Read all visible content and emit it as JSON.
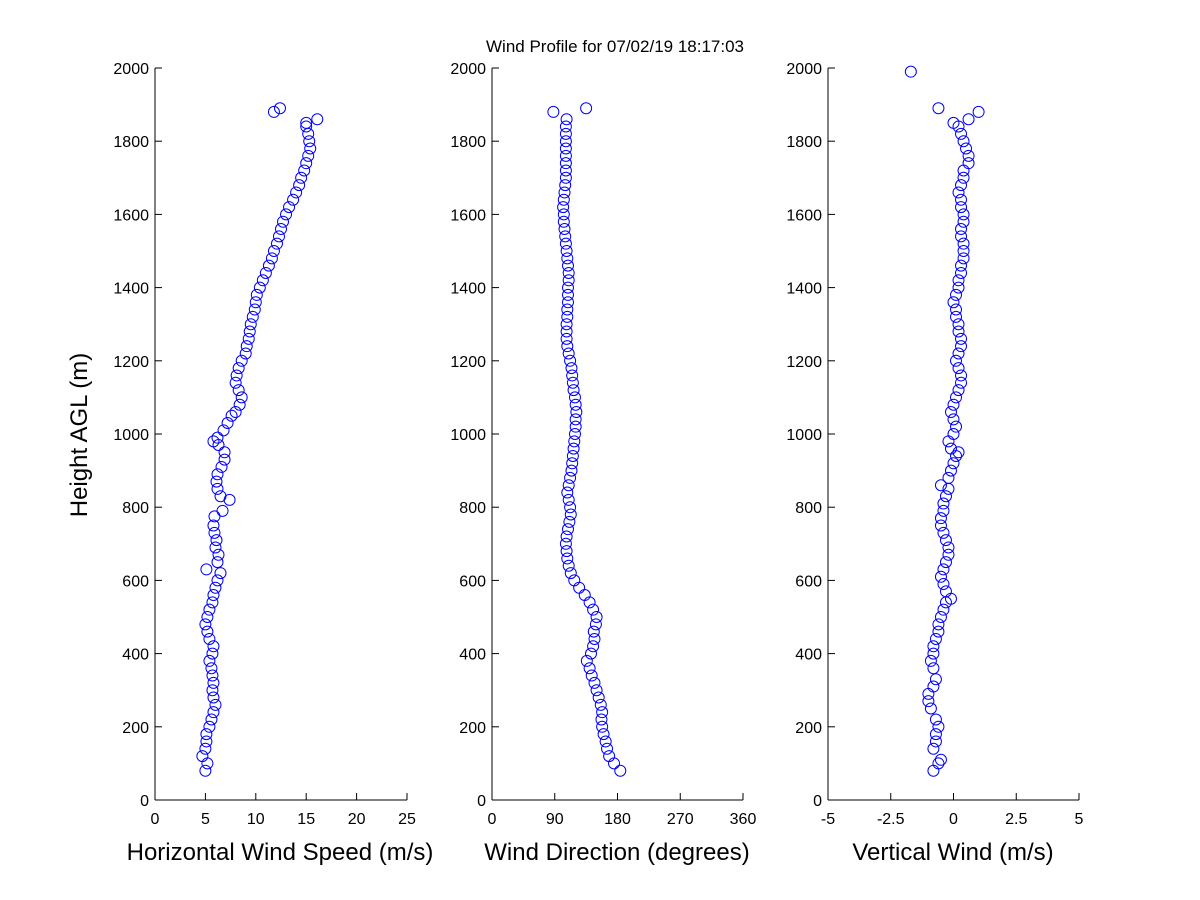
{
  "title": "Wind Profile for  07/02/19 18:17:03",
  "ylabel": "Height AGL (m)",
  "colors": {
    "marker": "#0000ff",
    "axis": "#000000",
    "background": "#ffffff"
  },
  "chart_data": [
    {
      "type": "scatter",
      "xlabel": "Horizontal Wind Speed (m/s)",
      "ylabel": "Height AGL (m)",
      "xlim": [
        0,
        25
      ],
      "ylim": [
        0,
        2000
      ],
      "xticks": [
        0,
        5,
        10,
        15,
        20,
        25
      ],
      "yticks": [
        0,
        200,
        400,
        600,
        800,
        1000,
        1200,
        1400,
        1600,
        1800,
        2000
      ],
      "xtick_labels": [
        "0",
        "5",
        "10",
        "15",
        "20",
        "25"
      ],
      "ytick_labels": [
        "0",
        "200",
        "400",
        "600",
        "800",
        "1000",
        "1200",
        "1400",
        "1600",
        "1800",
        "2000"
      ],
      "grid": false,
      "marker": "open-circle",
      "points": [
        [
          5.0,
          80
        ],
        [
          5.2,
          100
        ],
        [
          4.7,
          120
        ],
        [
          5.0,
          140
        ],
        [
          5.1,
          160
        ],
        [
          5.1,
          180
        ],
        [
          5.4,
          200
        ],
        [
          5.6,
          220
        ],
        [
          5.8,
          240
        ],
        [
          6.0,
          260
        ],
        [
          5.8,
          280
        ],
        [
          5.7,
          300
        ],
        [
          5.8,
          320
        ],
        [
          5.7,
          340
        ],
        [
          5.6,
          360
        ],
        [
          5.4,
          380
        ],
        [
          5.7,
          400
        ],
        [
          5.8,
          420
        ],
        [
          5.4,
          440
        ],
        [
          5.2,
          460
        ],
        [
          5.0,
          480
        ],
        [
          5.2,
          500
        ],
        [
          5.4,
          520
        ],
        [
          5.7,
          540
        ],
        [
          5.8,
          560
        ],
        [
          6.0,
          580
        ],
        [
          6.2,
          600
        ],
        [
          5.1,
          630
        ],
        [
          6.5,
          620
        ],
        [
          6.2,
          650
        ],
        [
          6.3,
          670
        ],
        [
          6.0,
          690
        ],
        [
          6.1,
          710
        ],
        [
          5.9,
          730
        ],
        [
          5.8,
          750
        ],
        [
          5.9,
          775
        ],
        [
          6.7,
          790
        ],
        [
          7.4,
          820
        ],
        [
          6.5,
          830
        ],
        [
          6.2,
          850
        ],
        [
          6.1,
          870
        ],
        [
          6.2,
          890
        ],
        [
          6.6,
          910
        ],
        [
          6.9,
          930
        ],
        [
          6.9,
          950
        ],
        [
          6.3,
          970
        ],
        [
          5.8,
          980
        ],
        [
          6.2,
          990
        ],
        [
          6.8,
          1010
        ],
        [
          7.2,
          1030
        ],
        [
          7.6,
          1050
        ],
        [
          8.0,
          1060
        ],
        [
          8.4,
          1080
        ],
        [
          8.6,
          1100
        ],
        [
          8.3,
          1120
        ],
        [
          8.0,
          1140
        ],
        [
          8.1,
          1160
        ],
        [
          8.3,
          1180
        ],
        [
          8.6,
          1200
        ],
        [
          9.0,
          1220
        ],
        [
          9.1,
          1240
        ],
        [
          9.3,
          1260
        ],
        [
          9.4,
          1280
        ],
        [
          9.5,
          1300
        ],
        [
          9.7,
          1320
        ],
        [
          9.9,
          1340
        ],
        [
          10.0,
          1360
        ],
        [
          10.1,
          1380
        ],
        [
          10.4,
          1400
        ],
        [
          10.7,
          1420
        ],
        [
          11.0,
          1440
        ],
        [
          11.3,
          1460
        ],
        [
          11.6,
          1480
        ],
        [
          11.8,
          1500
        ],
        [
          12.1,
          1520
        ],
        [
          12.3,
          1540
        ],
        [
          12.5,
          1560
        ],
        [
          12.7,
          1580
        ],
        [
          13.0,
          1600
        ],
        [
          13.3,
          1620
        ],
        [
          13.7,
          1640
        ],
        [
          14.0,
          1660
        ],
        [
          14.3,
          1680
        ],
        [
          14.5,
          1700
        ],
        [
          14.8,
          1720
        ],
        [
          15.0,
          1740
        ],
        [
          15.2,
          1760
        ],
        [
          15.4,
          1780
        ],
        [
          15.3,
          1800
        ],
        [
          15.2,
          1820
        ],
        [
          15.0,
          1840
        ],
        [
          15.0,
          1850
        ],
        [
          16.1,
          1860
        ],
        [
          11.8,
          1880
        ],
        [
          12.4,
          1890
        ]
      ]
    },
    {
      "type": "scatter",
      "xlabel": "Wind Direction (degrees)",
      "ylabel": "",
      "xlim": [
        0,
        360
      ],
      "ylim": [
        0,
        2000
      ],
      "xticks": [
        0,
        90,
        180,
        270,
        360
      ],
      "yticks": [
        0,
        200,
        400,
        600,
        800,
        1000,
        1200,
        1400,
        1600,
        1800,
        2000
      ],
      "xtick_labels": [
        "0",
        "90",
        "180",
        "270",
        "360"
      ],
      "ytick_labels": [
        "0",
        "200",
        "400",
        "600",
        "800",
        "1000",
        "1200",
        "1400",
        "1600",
        "1800",
        "2000"
      ],
      "grid": false,
      "marker": "open-circle",
      "points": [
        [
          184,
          80
        ],
        [
          175,
          100
        ],
        [
          168,
          120
        ],
        [
          165,
          140
        ],
        [
          163,
          160
        ],
        [
          160,
          180
        ],
        [
          158,
          200
        ],
        [
          157,
          220
        ],
        [
          158,
          240
        ],
        [
          156,
          260
        ],
        [
          153,
          280
        ],
        [
          150,
          300
        ],
        [
          147,
          320
        ],
        [
          143,
          340
        ],
        [
          140,
          360
        ],
        [
          136,
          380
        ],
        [
          142,
          400
        ],
        [
          145,
          420
        ],
        [
          147,
          440
        ],
        [
          146,
          460
        ],
        [
          149,
          480
        ],
        [
          150,
          500
        ],
        [
          145,
          520
        ],
        [
          140,
          540
        ],
        [
          133,
          560
        ],
        [
          125,
          580
        ],
        [
          118,
          600
        ],
        [
          113,
          620
        ],
        [
          110,
          640
        ],
        [
          108,
          660
        ],
        [
          107,
          680
        ],
        [
          106,
          700
        ],
        [
          107,
          720
        ],
        [
          109,
          740
        ],
        [
          111,
          760
        ],
        [
          113,
          780
        ],
        [
          112,
          800
        ],
        [
          110,
          820
        ],
        [
          108,
          840
        ],
        [
          110,
          860
        ],
        [
          112,
          880
        ],
        [
          114,
          900
        ],
        [
          115,
          920
        ],
        [
          116,
          940
        ],
        [
          117,
          960
        ],
        [
          118,
          980
        ],
        [
          119,
          1000
        ],
        [
          120,
          1020
        ],
        [
          120,
          1040
        ],
        [
          121,
          1060
        ],
        [
          120,
          1080
        ],
        [
          119,
          1100
        ],
        [
          117,
          1120
        ],
        [
          116,
          1140
        ],
        [
          115,
          1160
        ],
        [
          114,
          1180
        ],
        [
          112,
          1200
        ],
        [
          110,
          1220
        ],
        [
          108,
          1240
        ],
        [
          107,
          1260
        ],
        [
          107,
          1280
        ],
        [
          107,
          1300
        ],
        [
          108,
          1320
        ],
        [
          108,
          1340
        ],
        [
          109,
          1360
        ],
        [
          109,
          1380
        ],
        [
          109,
          1400
        ],
        [
          110,
          1420
        ],
        [
          110,
          1440
        ],
        [
          109,
          1460
        ],
        [
          108,
          1480
        ],
        [
          107,
          1500
        ],
        [
          106,
          1520
        ],
        [
          105,
          1540
        ],
        [
          104,
          1560
        ],
        [
          103,
          1580
        ],
        [
          103,
          1600
        ],
        [
          102,
          1620
        ],
        [
          103,
          1640
        ],
        [
          104,
          1660
        ],
        [
          105,
          1680
        ],
        [
          106,
          1700
        ],
        [
          106,
          1720
        ],
        [
          106,
          1740
        ],
        [
          106,
          1760
        ],
        [
          106,
          1780
        ],
        [
          106,
          1800
        ],
        [
          106,
          1820
        ],
        [
          106,
          1840
        ],
        [
          107,
          1860
        ],
        [
          88,
          1880
        ],
        [
          135,
          1890
        ]
      ]
    },
    {
      "type": "scatter",
      "xlabel": "Vertical Wind (m/s)",
      "ylabel": "",
      "xlim": [
        -5,
        5
      ],
      "ylim": [
        0,
        2000
      ],
      "xticks": [
        -5,
        -2.5,
        0,
        2.5,
        5
      ],
      "yticks": [
        0,
        200,
        400,
        600,
        800,
        1000,
        1200,
        1400,
        1600,
        1800,
        2000
      ],
      "xtick_labels": [
        "-5",
        "-2.5",
        "0",
        "2.5",
        "5"
      ],
      "ytick_labels": [
        "0",
        "200",
        "400",
        "600",
        "800",
        "1000",
        "1200",
        "1400",
        "1600",
        "1800",
        "2000"
      ],
      "grid": false,
      "marker": "open-circle",
      "points": [
        [
          -0.8,
          80
        ],
        [
          -0.6,
          100
        ],
        [
          -0.5,
          110
        ],
        [
          -0.8,
          140
        ],
        [
          -0.7,
          160
        ],
        [
          -0.7,
          180
        ],
        [
          -0.6,
          200
        ],
        [
          -0.7,
          220
        ],
        [
          -0.9,
          250
        ],
        [
          -1.0,
          270
        ],
        [
          -1.0,
          290
        ],
        [
          -0.8,
          310
        ],
        [
          -0.7,
          330
        ],
        [
          -0.8,
          360
        ],
        [
          -0.9,
          380
        ],
        [
          -0.8,
          400
        ],
        [
          -0.8,
          420
        ],
        [
          -0.7,
          440
        ],
        [
          -0.6,
          460
        ],
        [
          -0.6,
          480
        ],
        [
          -0.5,
          500
        ],
        [
          -0.4,
          520
        ],
        [
          -0.3,
          540
        ],
        [
          -0.1,
          550
        ],
        [
          -0.3,
          570
        ],
        [
          -0.4,
          590
        ],
        [
          -0.5,
          610
        ],
        [
          -0.4,
          630
        ],
        [
          -0.3,
          650
        ],
        [
          -0.2,
          670
        ],
        [
          -0.2,
          690
        ],
        [
          -0.3,
          710
        ],
        [
          -0.4,
          730
        ],
        [
          -0.5,
          750
        ],
        [
          -0.5,
          770
        ],
        [
          -0.4,
          790
        ],
        [
          -0.4,
          810
        ],
        [
          -0.3,
          830
        ],
        [
          -0.2,
          850
        ],
        [
          -0.5,
          860
        ],
        [
          -0.2,
          880
        ],
        [
          -0.1,
          900
        ],
        [
          0.0,
          920
        ],
        [
          0.1,
          940
        ],
        [
          0.2,
          950
        ],
        [
          -0.1,
          960
        ],
        [
          -0.2,
          980
        ],
        [
          0.0,
          1000
        ],
        [
          0.1,
          1020
        ],
        [
          0.0,
          1040
        ],
        [
          -0.1,
          1060
        ],
        [
          0.0,
          1080
        ],
        [
          0.1,
          1100
        ],
        [
          0.2,
          1120
        ],
        [
          0.3,
          1140
        ],
        [
          0.3,
          1160
        ],
        [
          0.2,
          1180
        ],
        [
          0.1,
          1200
        ],
        [
          0.2,
          1220
        ],
        [
          0.3,
          1240
        ],
        [
          0.3,
          1260
        ],
        [
          0.2,
          1280
        ],
        [
          0.2,
          1300
        ],
        [
          0.1,
          1320
        ],
        [
          0.1,
          1340
        ],
        [
          0.0,
          1360
        ],
        [
          0.1,
          1380
        ],
        [
          0.2,
          1400
        ],
        [
          0.2,
          1420
        ],
        [
          0.3,
          1440
        ],
        [
          0.3,
          1460
        ],
        [
          0.4,
          1480
        ],
        [
          0.4,
          1500
        ],
        [
          0.4,
          1520
        ],
        [
          0.3,
          1540
        ],
        [
          0.3,
          1560
        ],
        [
          0.4,
          1580
        ],
        [
          0.4,
          1600
        ],
        [
          0.3,
          1620
        ],
        [
          0.3,
          1640
        ],
        [
          0.2,
          1660
        ],
        [
          0.3,
          1680
        ],
        [
          0.4,
          1700
        ],
        [
          0.4,
          1720
        ],
        [
          0.6,
          1740
        ],
        [
          0.6,
          1760
        ],
        [
          0.5,
          1780
        ],
        [
          0.4,
          1800
        ],
        [
          0.3,
          1820
        ],
        [
          0.2,
          1840
        ],
        [
          0.0,
          1850
        ],
        [
          0.6,
          1860
        ],
        [
          1.0,
          1880
        ],
        [
          -0.6,
          1890
        ],
        [
          -1.7,
          1990
        ]
      ]
    }
  ]
}
